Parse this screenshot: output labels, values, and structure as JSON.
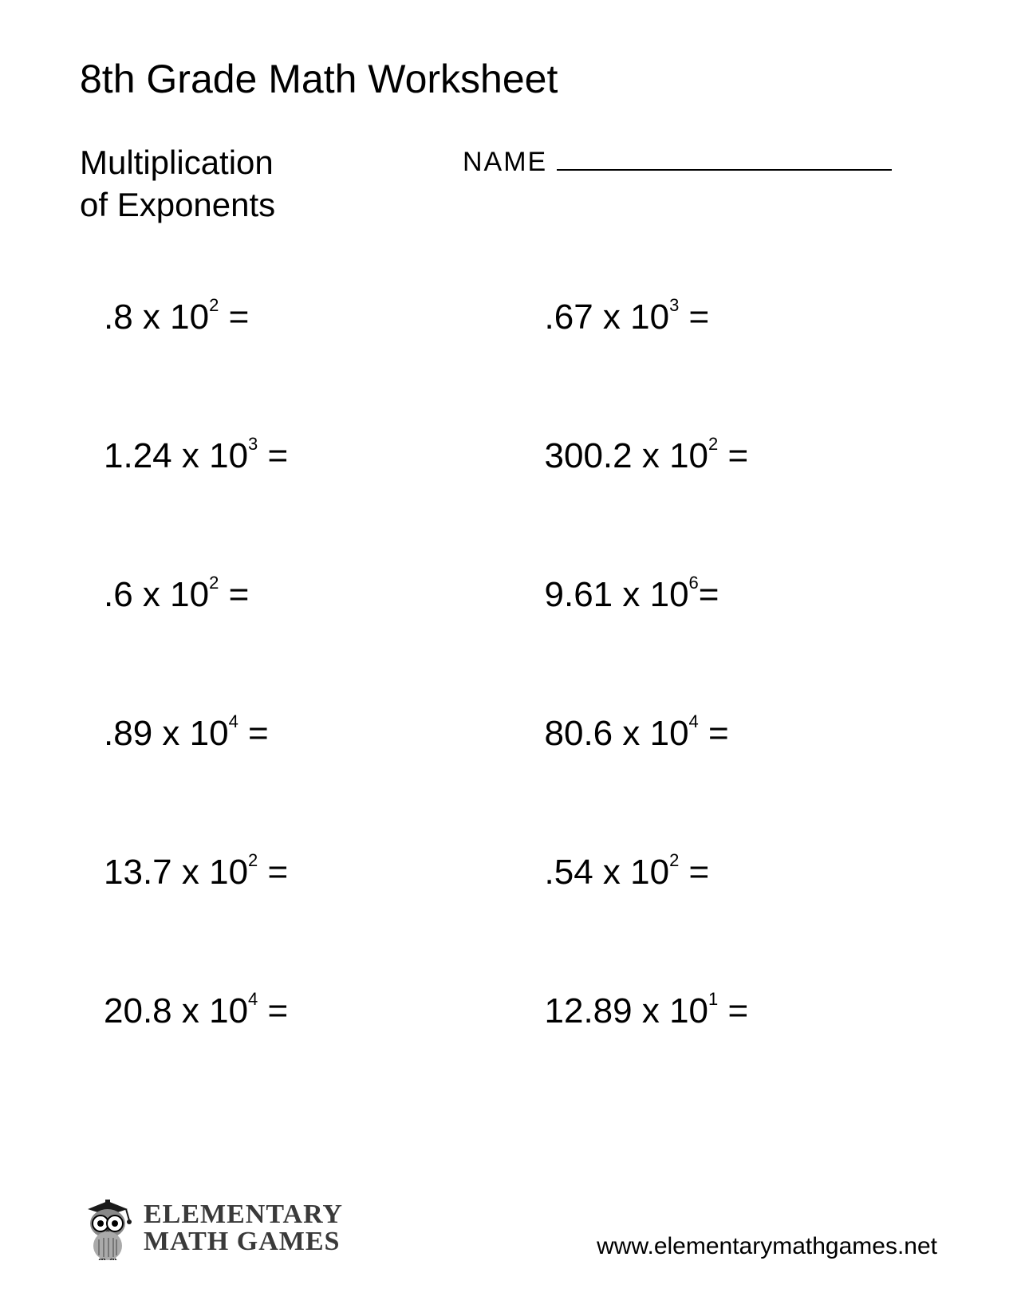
{
  "page": {
    "title": "8th Grade Math Worksheet",
    "subtitle_line1": "Multiplication",
    "subtitle_line2": "of Exponents",
    "name_label": "NAME",
    "background_color": "#ffffff",
    "text_color": "#000000",
    "title_fontsize": 50,
    "subtitle_fontsize": 42,
    "name_label_fontsize": 34,
    "problem_fontsize": 44,
    "exponent_fontsize": 22
  },
  "problems": {
    "layout": "grid",
    "columns": 2,
    "rows": 6,
    "items": [
      {
        "coefficient": ".8",
        "base": "10",
        "exponent": "2",
        "suffix": " ="
      },
      {
        "coefficient": ".67",
        "base": "10",
        "exponent": "3",
        "suffix": " ="
      },
      {
        "coefficient": "1.24",
        "base": "10",
        "exponent": "3",
        "suffix": "  ="
      },
      {
        "coefficient": "300.2",
        "base": "10",
        "exponent": "2",
        "suffix": " ="
      },
      {
        "coefficient": ".6",
        "base": "10",
        "exponent": "2",
        "suffix": " ="
      },
      {
        "coefficient": "9.61",
        "base": "10",
        "exponent": "6",
        "suffix": "="
      },
      {
        "coefficient": ".89",
        "base": "10",
        "exponent": "4",
        "suffix": " ="
      },
      {
        "coefficient": "80.6",
        "base": "10",
        "exponent": "4",
        "suffix": " ="
      },
      {
        "coefficient": "13.7",
        "base": "10",
        "exponent": "2",
        "suffix": " ="
      },
      {
        "coefficient": ".54 ",
        "base": "10",
        "exponent": "2",
        "suffix": " ="
      },
      {
        "coefficient": "20.8",
        "base": "10",
        "exponent": "4",
        "suffix": " ="
      },
      {
        "coefficient": "12.89",
        "base": "10",
        "exponent": "1",
        "suffix": " ="
      }
    ]
  },
  "footer": {
    "logo_line1": "ELEMENTARY",
    "logo_line2": "MATH GAMES",
    "logo_text_color": "#3a3a3a",
    "url": "www.elementarymathgames.net",
    "url_fontsize": 30
  }
}
